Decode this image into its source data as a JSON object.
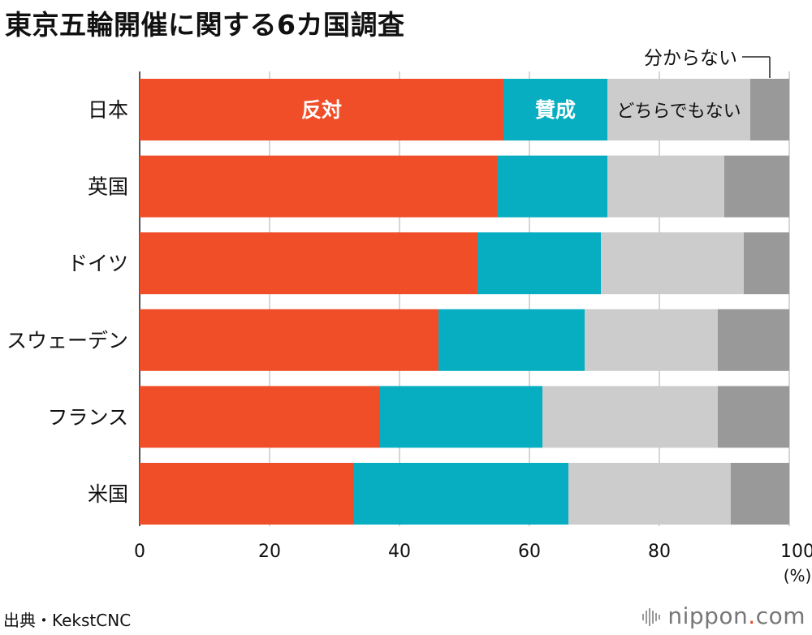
{
  "title": "東京五輪開催に関する6カ国調査",
  "source": "出典・KekstCNC",
  "brand": {
    "name": "nippon",
    "dot": ".",
    "tld": "com"
  },
  "chart_data": {
    "type": "bar",
    "orientation": "horizontal",
    "stacked": true,
    "categories": [
      "日本",
      "英国",
      "ドイツ",
      "スウェーデン",
      "フランス",
      "米国"
    ],
    "series": [
      {
        "name": "反対",
        "color": "#f04e28",
        "values": [
          56,
          55,
          52,
          46,
          37,
          33
        ]
      },
      {
        "name": "賛成",
        "color": "#07aec1",
        "values": [
          16,
          17,
          19,
          22.5,
          25,
          33
        ]
      },
      {
        "name": "どちらでもない",
        "color": "#cccccc",
        "values": [
          22,
          18,
          22,
          20.5,
          27,
          25
        ]
      },
      {
        "name": "分からない",
        "color": "#999999",
        "values": [
          6,
          10,
          7,
          11,
          11,
          9
        ]
      }
    ],
    "xlim": [
      0,
      100
    ],
    "xticks": [
      0,
      20,
      40,
      60,
      80,
      100
    ],
    "xunit": "(%)",
    "grid": true
  }
}
